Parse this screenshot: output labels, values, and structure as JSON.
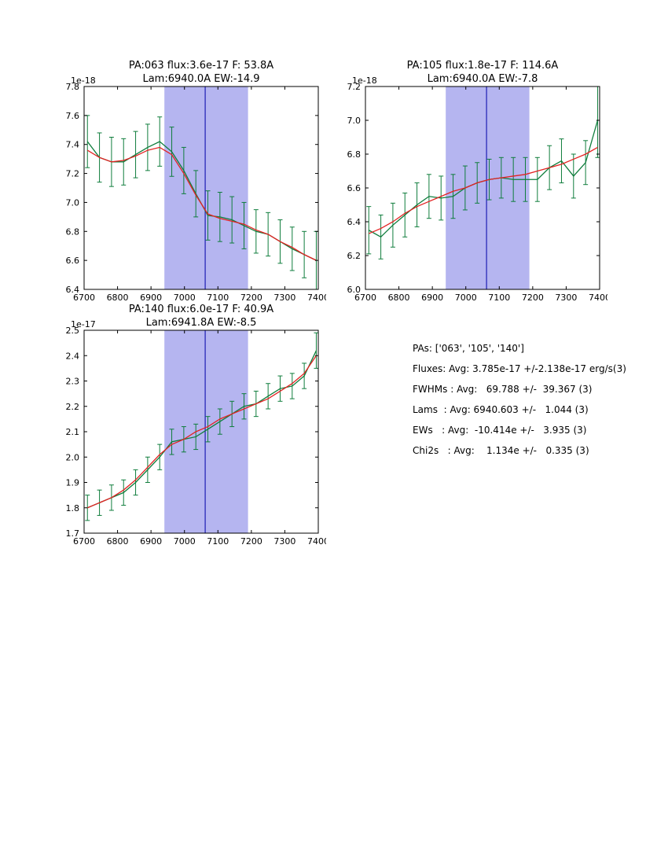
{
  "colors": {
    "data_line": "#0f7d3c",
    "fit_line": "#e32222",
    "band_fill": "#b5b5f0",
    "vline": "#2929b8",
    "axis": "#000000"
  },
  "chart_data": [
    {
      "type": "line",
      "title_line1": "PA:063 flux:3.6e-17 F: 53.8A",
      "title_line2": "Lam:6940.0A EW:-14.9",
      "offset_label": "1e-18",
      "xlim": [
        6700,
        7400
      ],
      "ylim": [
        6.4,
        7.8
      ],
      "xticks": [
        6700,
        6800,
        6900,
        7000,
        7100,
        7200,
        7300,
        7400
      ],
      "yticks": [
        6.4,
        6.6,
        6.8,
        7.0,
        7.2,
        7.4,
        7.6,
        7.8
      ],
      "x": [
        6710,
        6746,
        6782,
        6818,
        6854,
        6890,
        6926,
        6962,
        6998,
        7034,
        7070,
        7106,
        7142,
        7178,
        7214,
        7250,
        7286,
        7322,
        7358,
        7394
      ],
      "series": [
        {
          "name": "spectrum-data",
          "color": "#0f7d3c",
          "values": [
            7.42,
            7.31,
            7.28,
            7.28,
            7.33,
            7.38,
            7.42,
            7.35,
            7.22,
            7.06,
            6.91,
            6.9,
            6.88,
            6.84,
            6.8,
            6.78,
            6.73,
            6.68,
            6.64,
            6.6
          ],
          "errors": [
            0.18,
            0.17,
            0.17,
            0.16,
            0.16,
            0.16,
            0.17,
            0.17,
            0.16,
            0.16,
            0.17,
            0.17,
            0.16,
            0.16,
            0.15,
            0.15,
            0.15,
            0.15,
            0.16,
            0.2
          ]
        },
        {
          "name": "gaussian-fit",
          "color": "#e32222",
          "values": [
            7.36,
            7.31,
            7.28,
            7.29,
            7.32,
            7.36,
            7.38,
            7.33,
            7.2,
            7.05,
            6.92,
            6.89,
            6.87,
            6.85,
            6.81,
            6.78,
            6.73,
            6.69,
            6.64,
            6.6
          ]
        }
      ],
      "band": {
        "x0": 6940,
        "x1": 7190
      },
      "vline": {
        "x": 7062
      }
    },
    {
      "type": "line",
      "title_line1": "PA:105 flux:1.8e-17 F: 114.6A",
      "title_line2": "Lam:6940.0A EW:-7.8",
      "offset_label": "1e-18",
      "xlim": [
        6700,
        7400
      ],
      "ylim": [
        6.0,
        7.2
      ],
      "xticks": [
        6700,
        6800,
        6900,
        7000,
        7100,
        7200,
        7300,
        7400
      ],
      "yticks": [
        6.0,
        6.2,
        6.4,
        6.6,
        6.8,
        7.0,
        7.2
      ],
      "x": [
        6710,
        6746,
        6782,
        6818,
        6854,
        6890,
        6926,
        6962,
        6998,
        7034,
        7070,
        7106,
        7142,
        7178,
        7214,
        7250,
        7286,
        7322,
        7358,
        7394
      ],
      "series": [
        {
          "name": "spectrum-data",
          "color": "#0f7d3c",
          "values": [
            6.35,
            6.31,
            6.38,
            6.44,
            6.5,
            6.55,
            6.54,
            6.55,
            6.6,
            6.63,
            6.65,
            6.66,
            6.65,
            6.65,
            6.65,
            6.72,
            6.76,
            6.67,
            6.75,
            7.0
          ],
          "errors": [
            0.14,
            0.13,
            0.13,
            0.13,
            0.13,
            0.13,
            0.13,
            0.13,
            0.13,
            0.12,
            0.12,
            0.12,
            0.13,
            0.13,
            0.13,
            0.13,
            0.13,
            0.13,
            0.13,
            0.22
          ]
        },
        {
          "name": "gaussian-fit",
          "color": "#e32222",
          "values": [
            6.33,
            6.36,
            6.4,
            6.45,
            6.49,
            6.52,
            6.55,
            6.58,
            6.6,
            6.63,
            6.65,
            6.66,
            6.67,
            6.68,
            6.7,
            6.72,
            6.74,
            6.77,
            6.8,
            6.84
          ]
        }
      ],
      "band": {
        "x0": 6940,
        "x1": 7190
      },
      "vline": {
        "x": 7062
      }
    },
    {
      "type": "line",
      "title_line1": "PA:140 flux:6.0e-17 F: 40.9A",
      "title_line2": "Lam:6941.8A EW:-8.5",
      "offset_label": "1e-17",
      "xlim": [
        6700,
        7400
      ],
      "ylim": [
        1.7,
        2.5
      ],
      "xticks": [
        6700,
        6800,
        6900,
        7000,
        7100,
        7200,
        7300,
        7400
      ],
      "yticks": [
        1.7,
        1.8,
        1.9,
        2.0,
        2.1,
        2.2,
        2.3,
        2.4,
        2.5
      ],
      "x": [
        6710,
        6746,
        6782,
        6818,
        6854,
        6890,
        6926,
        6962,
        6998,
        7034,
        7070,
        7106,
        7142,
        7178,
        7214,
        7250,
        7286,
        7322,
        7358,
        7394
      ],
      "series": [
        {
          "name": "spectrum-data",
          "color": "#0f7d3c",
          "values": [
            1.8,
            1.82,
            1.84,
            1.86,
            1.9,
            1.95,
            2.0,
            2.06,
            2.07,
            2.08,
            2.11,
            2.14,
            2.17,
            2.2,
            2.21,
            2.24,
            2.27,
            2.28,
            2.32,
            2.42
          ],
          "errors": [
            0.05,
            0.05,
            0.05,
            0.05,
            0.05,
            0.05,
            0.05,
            0.05,
            0.05,
            0.05,
            0.05,
            0.05,
            0.05,
            0.05,
            0.05,
            0.05,
            0.05,
            0.05,
            0.05,
            0.07
          ]
        },
        {
          "name": "gaussian-fit",
          "color": "#e32222",
          "values": [
            1.8,
            1.82,
            1.84,
            1.87,
            1.91,
            1.96,
            2.01,
            2.05,
            2.07,
            2.1,
            2.12,
            2.15,
            2.17,
            2.19,
            2.21,
            2.23,
            2.26,
            2.29,
            2.33,
            2.4
          ]
        }
      ],
      "band": {
        "x0": 6940,
        "x1": 7190
      },
      "vline": {
        "x": 7062
      }
    }
  ],
  "stats": {
    "lines": [
      "PAs: ['063', '105', '140']",
      "Fluxes: Avg: 3.785e-17 +/-2.138e-17 erg/s(3)",
      "FWHMs : Avg:   69.788 +/-  39.367 (3)",
      "Lams  : Avg: 6940.603 +/-   1.044 (3)",
      "EWs   : Avg:  -10.414e +/-   3.935 (3)",
      "Chi2s   : Avg:    1.134e +/-   0.335 (3)"
    ]
  }
}
